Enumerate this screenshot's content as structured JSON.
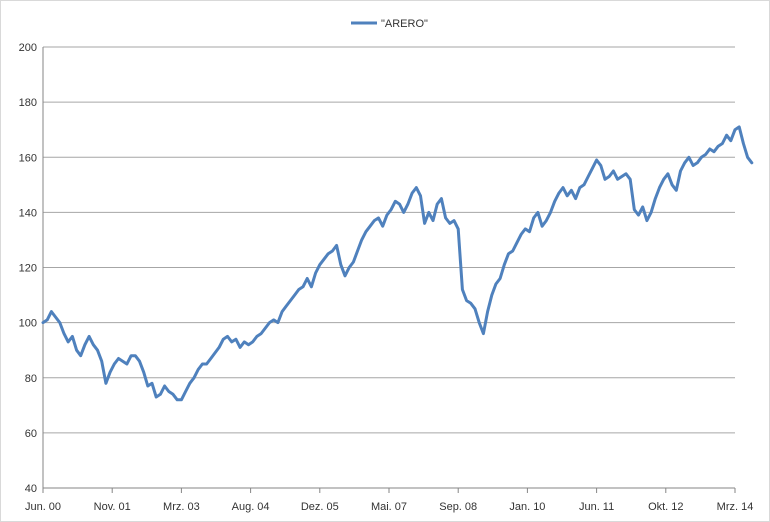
{
  "chart_data": {
    "type": "line",
    "title": "",
    "xlabel": "",
    "ylabel": "",
    "legend": {
      "position": "top-center",
      "entries": [
        "\"ARERO\""
      ]
    },
    "grid": {
      "horizontal": true,
      "vertical": false
    },
    "ylim": [
      40,
      200
    ],
    "yticks": [
      40,
      60,
      80,
      100,
      120,
      140,
      160,
      180,
      200
    ],
    "xlim": [
      "2000-06",
      "2014-03"
    ],
    "xticks": [
      "Jun. 00",
      "Nov. 01",
      "Mrz. 03",
      "Aug. 04",
      "Dez. 05",
      "Mai. 07",
      "Sep. 08",
      "Jan. 10",
      "Jun. 11",
      "Okt. 12",
      "Mrz. 14"
    ],
    "series": [
      {
        "name": "\"ARERO\"",
        "color": "#4f81bd",
        "points": [
          [
            "2000-06",
            100
          ],
          [
            "2000-07",
            101
          ],
          [
            "2000-08",
            104
          ],
          [
            "2000-09",
            102
          ],
          [
            "2000-10",
            100
          ],
          [
            "2000-11",
            96
          ],
          [
            "2000-12",
            93
          ],
          [
            "2001-01",
            95
          ],
          [
            "2001-02",
            90
          ],
          [
            "2001-03",
            88
          ],
          [
            "2001-04",
            92
          ],
          [
            "2001-05",
            95
          ],
          [
            "2001-06",
            92
          ],
          [
            "2001-07",
            90
          ],
          [
            "2001-08",
            86
          ],
          [
            "2001-09",
            78
          ],
          [
            "2001-10",
            82
          ],
          [
            "2001-11",
            85
          ],
          [
            "2001-12",
            87
          ],
          [
            "2002-01",
            86
          ],
          [
            "2002-02",
            85
          ],
          [
            "2002-03",
            88
          ],
          [
            "2002-04",
            88
          ],
          [
            "2002-05",
            86
          ],
          [
            "2002-06",
            82
          ],
          [
            "2002-07",
            77
          ],
          [
            "2002-08",
            78
          ],
          [
            "2002-09",
            73
          ],
          [
            "2002-10",
            74
          ],
          [
            "2002-11",
            77
          ],
          [
            "2002-12",
            75
          ],
          [
            "2003-01",
            74
          ],
          [
            "2003-02",
            72
          ],
          [
            "2003-03",
            72
          ],
          [
            "2003-04",
            75
          ],
          [
            "2003-05",
            78
          ],
          [
            "2003-06",
            80
          ],
          [
            "2003-07",
            83
          ],
          [
            "2003-08",
            85
          ],
          [
            "2003-09",
            85
          ],
          [
            "2003-10",
            87
          ],
          [
            "2003-11",
            89
          ],
          [
            "2003-12",
            91
          ],
          [
            "2004-01",
            94
          ],
          [
            "2004-02",
            95
          ],
          [
            "2004-03",
            93
          ],
          [
            "2004-04",
            94
          ],
          [
            "2004-05",
            91
          ],
          [
            "2004-06",
            93
          ],
          [
            "2004-07",
            92
          ],
          [
            "2004-08",
            93
          ],
          [
            "2004-09",
            95
          ],
          [
            "2004-10",
            96
          ],
          [
            "2004-11",
            98
          ],
          [
            "2004-12",
            100
          ],
          [
            "2005-01",
            101
          ],
          [
            "2005-02",
            100
          ],
          [
            "2005-03",
            104
          ],
          [
            "2005-04",
            106
          ],
          [
            "2005-05",
            108
          ],
          [
            "2005-06",
            110
          ],
          [
            "2005-07",
            112
          ],
          [
            "2005-08",
            113
          ],
          [
            "2005-09",
            116
          ],
          [
            "2005-10",
            113
          ],
          [
            "2005-11",
            118
          ],
          [
            "2005-12",
            121
          ],
          [
            "2006-01",
            123
          ],
          [
            "2006-02",
            125
          ],
          [
            "2006-03",
            126
          ],
          [
            "2006-04",
            128
          ],
          [
            "2006-05",
            121
          ],
          [
            "2006-06",
            117
          ],
          [
            "2006-07",
            120
          ],
          [
            "2006-08",
            122
          ],
          [
            "2006-09",
            126
          ],
          [
            "2006-10",
            130
          ],
          [
            "2006-11",
            133
          ],
          [
            "2006-12",
            135
          ],
          [
            "2007-01",
            137
          ],
          [
            "2007-02",
            138
          ],
          [
            "2007-03",
            135
          ],
          [
            "2007-04",
            139
          ],
          [
            "2007-05",
            141
          ],
          [
            "2007-06",
            144
          ],
          [
            "2007-07",
            143
          ],
          [
            "2007-08",
            140
          ],
          [
            "2007-09",
            143
          ],
          [
            "2007-10",
            147
          ],
          [
            "2007-11",
            149
          ],
          [
            "2007-12",
            146
          ],
          [
            "2008-01",
            136
          ],
          [
            "2008-02",
            140
          ],
          [
            "2008-03",
            137
          ],
          [
            "2008-04",
            143
          ],
          [
            "2008-05",
            145
          ],
          [
            "2008-06",
            138
          ],
          [
            "2008-07",
            136
          ],
          [
            "2008-08",
            137
          ],
          [
            "2008-09",
            134
          ],
          [
            "2008-10",
            112
          ],
          [
            "2008-11",
            108
          ],
          [
            "2008-12",
            107
          ],
          [
            "2009-01",
            105
          ],
          [
            "2009-02",
            100
          ],
          [
            "2009-03",
            96
          ],
          [
            "2009-04",
            104
          ],
          [
            "2009-05",
            110
          ],
          [
            "2009-06",
            114
          ],
          [
            "2009-07",
            116
          ],
          [
            "2009-08",
            121
          ],
          [
            "2009-09",
            125
          ],
          [
            "2009-10",
            126
          ],
          [
            "2009-11",
            129
          ],
          [
            "2009-12",
            132
          ],
          [
            "2010-01",
            134
          ],
          [
            "2010-02",
            133
          ],
          [
            "2010-03",
            138
          ],
          [
            "2010-04",
            140
          ],
          [
            "2010-05",
            135
          ],
          [
            "2010-06",
            137
          ],
          [
            "2010-07",
            140
          ],
          [
            "2010-08",
            144
          ],
          [
            "2010-09",
            147
          ],
          [
            "2010-10",
            149
          ],
          [
            "2010-11",
            146
          ],
          [
            "2010-12",
            148
          ],
          [
            "2011-01",
            145
          ],
          [
            "2011-02",
            149
          ],
          [
            "2011-03",
            150
          ],
          [
            "2011-04",
            153
          ],
          [
            "2011-05",
            156
          ],
          [
            "2011-06",
            159
          ],
          [
            "2011-07",
            157
          ],
          [
            "2011-08",
            152
          ],
          [
            "2011-09",
            153
          ],
          [
            "2011-10",
            155
          ],
          [
            "2011-11",
            152
          ],
          [
            "2011-12",
            153
          ],
          [
            "2012-01",
            154
          ],
          [
            "2012-02",
            152
          ],
          [
            "2012-03",
            141
          ],
          [
            "2012-04",
            139
          ],
          [
            "2012-05",
            142
          ],
          [
            "2012-06",
            137
          ],
          [
            "2012-07",
            140
          ],
          [
            "2012-08",
            145
          ],
          [
            "2012-09",
            149
          ],
          [
            "2012-10",
            152
          ],
          [
            "2012-11",
            154
          ],
          [
            "2012-12",
            150
          ],
          [
            "2013-01",
            148
          ],
          [
            "2013-02",
            155
          ],
          [
            "2013-03",
            158
          ],
          [
            "2013-04",
            160
          ],
          [
            "2013-05",
            157
          ],
          [
            "2013-06",
            158
          ],
          [
            "2013-07",
            160
          ],
          [
            "2013-08",
            161
          ],
          [
            "2013-09",
            163
          ],
          [
            "2013-10",
            162
          ],
          [
            "2013-11",
            164
          ],
          [
            "2013-12",
            165
          ],
          [
            "2014-01",
            168
          ],
          [
            "2014-02",
            166
          ],
          [
            "2014-03",
            170
          ],
          [
            "2014-04",
            171
          ],
          [
            "2014-05",
            165
          ],
          [
            "2014-06",
            160
          ],
          [
            "2014-07",
            158
          ]
        ]
      }
    ]
  }
}
